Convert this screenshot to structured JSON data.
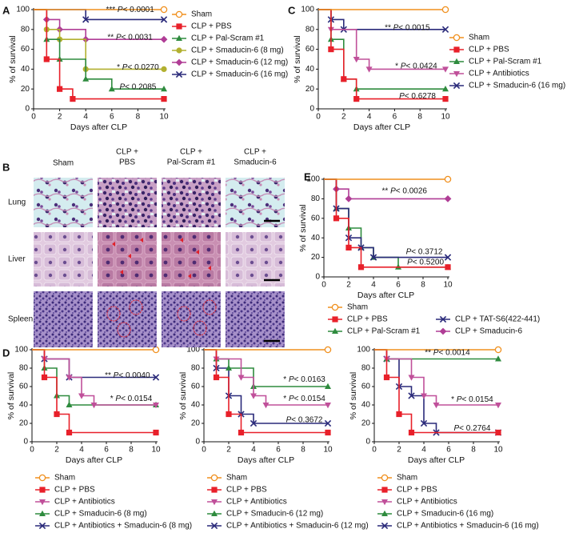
{
  "chart_data": [
    {
      "type": "step",
      "panel": "A",
      "ylabel": "% of survival",
      "xlabel": "Days after CLP",
      "x": [
        0,
        1,
        2,
        3,
        4,
        5,
        6,
        7,
        8,
        9,
        10
      ],
      "xlim": [
        0,
        10
      ],
      "ylim": [
        0,
        100
      ],
      "xticks": [
        0,
        2,
        4,
        6,
        8,
        10
      ],
      "yticks": [
        0,
        20,
        40,
        60,
        80,
        100
      ],
      "legend": "right",
      "series": [
        {
          "name": "Sham",
          "color": "#f0901e",
          "marker": "circle-open",
          "values": [
            100,
            100,
            100,
            100,
            100,
            100,
            100,
            100,
            100,
            100,
            100
          ]
        },
        {
          "name": "CLP + PBS",
          "color": "#e8202a",
          "marker": "square",
          "values": [
            100,
            50,
            20,
            10,
            10,
            10,
            10,
            10,
            10,
            10,
            10
          ]
        },
        {
          "name": "CLP + Pal-Scram #1",
          "color": "#2e8b3e",
          "marker": "triangle",
          "values": [
            100,
            70,
            50,
            50,
            30,
            30,
            20,
            20,
            20,
            20,
            20
          ]
        },
        {
          "name": "CLP + Smaducin-6 (8 mg)",
          "color": "#b2b030",
          "marker": "circle",
          "values": [
            100,
            80,
            70,
            70,
            40,
            40,
            40,
            40,
            40,
            40,
            40
          ]
        },
        {
          "name": "CLP + Smaducin-6 (12 mg)",
          "color": "#b03d96",
          "marker": "diamond",
          "values": [
            100,
            90,
            80,
            80,
            70,
            70,
            70,
            70,
            70,
            70,
            70
          ]
        },
        {
          "name": "CLP + Smaducin-6 (16 mg)",
          "color": "#2a2a7a",
          "marker": "x",
          "values": [
            100,
            100,
            100,
            100,
            90,
            90,
            90,
            90,
            90,
            90,
            90
          ]
        }
      ],
      "annotations": [
        "*** P< 0.0001",
        "** P< 0.0031",
        "* P< 0.0270",
        "P< 0.2085"
      ]
    },
    {
      "type": "step",
      "panel": "C",
      "ylabel": "% of survival",
      "xlabel": "Days after CLP",
      "x": [
        0,
        1,
        2,
        3,
        4,
        5,
        6,
        7,
        8,
        9,
        10
      ],
      "xlim": [
        0,
        10
      ],
      "ylim": [
        0,
        100
      ],
      "xticks": [
        0,
        2,
        4,
        6,
        8,
        10
      ],
      "yticks": [
        0,
        20,
        40,
        60,
        80,
        100
      ],
      "legend": "right",
      "series": [
        {
          "name": "Sham",
          "color": "#f0901e",
          "marker": "circle-open",
          "values": [
            100,
            100,
            100,
            100,
            100,
            100,
            100,
            100,
            100,
            100,
            100
          ]
        },
        {
          "name": "CLP + PBS",
          "color": "#e8202a",
          "marker": "square",
          "values": [
            100,
            60,
            30,
            10,
            10,
            10,
            10,
            10,
            10,
            10,
            10
          ]
        },
        {
          "name": "CLP + Pal-Scram #1",
          "color": "#2e8b3e",
          "marker": "triangle",
          "values": [
            100,
            70,
            30,
            20,
            20,
            20,
            20,
            20,
            20,
            20,
            20
          ]
        },
        {
          "name": "CLP + Antibiotics",
          "color": "#c0509a",
          "marker": "triangle-down",
          "values": [
            100,
            80,
            80,
            50,
            40,
            40,
            40,
            40,
            40,
            40,
            40
          ]
        },
        {
          "name": "CLP + Smaducin-6 (16 mg)",
          "color": "#2a2a7a",
          "marker": "x",
          "values": [
            100,
            90,
            80,
            80,
            80,
            80,
            80,
            80,
            80,
            80,
            80
          ]
        }
      ],
      "annotations": [
        "** P< 0.0015",
        "* P< 0.0424",
        "P< 0.6278"
      ]
    },
    {
      "type": "step",
      "panel": "E",
      "ylabel": "% of survival",
      "xlabel": "Days after CLP",
      "x": [
        0,
        1,
        2,
        3,
        4,
        5,
        6,
        7,
        8,
        9,
        10
      ],
      "xlim": [
        0,
        10
      ],
      "ylim": [
        0,
        100
      ],
      "xticks": [
        0,
        2,
        4,
        6,
        8,
        10
      ],
      "yticks": [
        0,
        20,
        40,
        60,
        80,
        100
      ],
      "legend": "below",
      "series": [
        {
          "name": "Sham",
          "color": "#f0901e",
          "marker": "circle-open",
          "values": [
            100,
            100,
            100,
            100,
            100,
            100,
            100,
            100,
            100,
            100,
            100
          ]
        },
        {
          "name": "CLP + PBS",
          "color": "#e8202a",
          "marker": "square",
          "values": [
            100,
            60,
            30,
            10,
            10,
            10,
            10,
            10,
            10,
            10,
            10
          ]
        },
        {
          "name": "CLP + TAT-S6(422-441)",
          "color": "#2a2a7a",
          "marker": "x",
          "values": [
            100,
            70,
            40,
            30,
            20,
            20,
            20,
            20,
            20,
            20,
            20
          ]
        },
        {
          "name": "CLP + Pal-Scram #1",
          "color": "#2e8b3e",
          "marker": "triangle",
          "values": [
            100,
            70,
            50,
            30,
            20,
            20,
            10,
            10,
            10,
            10,
            10
          ]
        },
        {
          "name": "CLP + Smaducin-6",
          "color": "#b03d96",
          "marker": "diamond",
          "values": [
            100,
            90,
            80,
            80,
            80,
            80,
            80,
            80,
            80,
            80,
            80
          ]
        }
      ],
      "annotations": [
        "** P< 0.0026",
        "P< 0.3712",
        "P< 0.5200"
      ]
    },
    {
      "type": "step",
      "panel": "D",
      "ylabel": "% of survival",
      "xlabel": "Days after CLP",
      "x": [
        0,
        1,
        2,
        3,
        4,
        5,
        6,
        7,
        8,
        9,
        10
      ],
      "xlim": [
        0,
        10
      ],
      "ylim": [
        0,
        100
      ],
      "xticks": [
        0,
        2,
        4,
        6,
        8,
        10
      ],
      "yticks": [
        0,
        20,
        40,
        60,
        80,
        100
      ],
      "legend": "below",
      "series": [
        {
          "name": "Sham",
          "color": "#f0901e",
          "marker": "circle-open",
          "values": [
            100,
            100,
            100,
            100,
            100,
            100,
            100,
            100,
            100,
            100,
            100
          ]
        },
        {
          "name": "CLP + PBS",
          "color": "#e8202a",
          "marker": "square",
          "values": [
            100,
            70,
            30,
            10,
            10,
            10,
            10,
            10,
            10,
            10,
            10
          ]
        },
        {
          "name": "CLP + Antibiotics",
          "color": "#c0509a",
          "marker": "triangle-down",
          "values": [
            100,
            90,
            90,
            70,
            50,
            40,
            40,
            40,
            40,
            40,
            40
          ]
        },
        {
          "name": "CLP + Smaducin-6 (8 mg)",
          "color": "#2e8b3e",
          "marker": "triangle",
          "values": [
            100,
            80,
            50,
            40,
            40,
            40,
            40,
            40,
            40,
            40,
            40
          ]
        },
        {
          "name": "CLP + Antibiotics + Smaducin-6 (8 mg)",
          "color": "#2a2a7a",
          "marker": "x",
          "values": [
            100,
            90,
            90,
            70,
            70,
            70,
            70,
            70,
            70,
            70,
            70
          ]
        }
      ],
      "annotations": [
        "** P< 0.0040",
        "* P< 0.0154"
      ]
    },
    {
      "type": "step",
      "ylabel": "% of survival",
      "xlabel": "Days after CLP",
      "x": [
        0,
        1,
        2,
        3,
        4,
        5,
        6,
        7,
        8,
        9,
        10
      ],
      "xlim": [
        0,
        10
      ],
      "ylim": [
        0,
        100
      ],
      "xticks": [
        0,
        2,
        4,
        6,
        8,
        10
      ],
      "yticks": [
        0,
        20,
        40,
        60,
        80,
        100
      ],
      "legend": "below",
      "series": [
        {
          "name": "Sham",
          "color": "#f0901e",
          "marker": "circle-open",
          "values": [
            100,
            100,
            100,
            100,
            100,
            100,
            100,
            100,
            100,
            100,
            100
          ]
        },
        {
          "name": "CLP + PBS",
          "color": "#e8202a",
          "marker": "square",
          "values": [
            100,
            70,
            30,
            10,
            10,
            10,
            10,
            10,
            10,
            10,
            10
          ]
        },
        {
          "name": "CLP + Antibiotics",
          "color": "#c0509a",
          "marker": "triangle-down",
          "values": [
            100,
            90,
            90,
            70,
            50,
            40,
            40,
            40,
            40,
            40,
            40
          ]
        },
        {
          "name": "CLP + Smaducin-6 (12 mg)",
          "color": "#2e8b3e",
          "marker": "triangle",
          "values": [
            100,
            90,
            80,
            80,
            60,
            60,
            60,
            60,
            60,
            60,
            60
          ]
        },
        {
          "name": "CLP + Antibiotics + Smaducin-6 (12 mg)",
          "color": "#2a2a7a",
          "marker": "x",
          "values": [
            100,
            80,
            50,
            30,
            20,
            20,
            20,
            20,
            20,
            20,
            20
          ]
        }
      ],
      "annotations": [
        "* P< 0.0163",
        "* P< 0.0154",
        "P< 0.3672"
      ]
    },
    {
      "type": "step",
      "ylabel": "% of survival",
      "xlabel": "Days after CLP",
      "x": [
        0,
        1,
        2,
        3,
        4,
        5,
        6,
        7,
        8,
        9,
        10
      ],
      "xlim": [
        0,
        10
      ],
      "ylim": [
        0,
        100
      ],
      "xticks": [
        0,
        2,
        4,
        6,
        8,
        10
      ],
      "yticks": [
        0,
        20,
        40,
        60,
        80,
        100
      ],
      "legend": "below",
      "series": [
        {
          "name": "Sham",
          "color": "#f0901e",
          "marker": "circle-open",
          "values": [
            100,
            100,
            100,
            100,
            100,
            100,
            100,
            100,
            100,
            100,
            100
          ]
        },
        {
          "name": "CLP + PBS",
          "color": "#e8202a",
          "marker": "square",
          "values": [
            100,
            70,
            30,
            10,
            10,
            10,
            10,
            10,
            10,
            10,
            10
          ]
        },
        {
          "name": "CLP + Antibiotics",
          "color": "#c0509a",
          "marker": "triangle-down",
          "values": [
            100,
            90,
            90,
            70,
            50,
            40,
            40,
            40,
            40,
            40,
            40
          ]
        },
        {
          "name": "CLP + Smaducin-6 (16 mg)",
          "color": "#2e8b3e",
          "marker": "triangle",
          "values": [
            100,
            90,
            90,
            90,
            90,
            90,
            90,
            90,
            90,
            90,
            90
          ]
        },
        {
          "name": "CLP + Antibiotics + Smaducin-6 (16 mg)",
          "color": "#2a2a7a",
          "marker": "x",
          "values": [
            100,
            90,
            60,
            50,
            20,
            10,
            10,
            10,
            10,
            10,
            10
          ]
        }
      ],
      "annotations": [
        "** P< 0.0014",
        "* P< 0.0154",
        "P< 0.2764"
      ]
    }
  ],
  "histology": {
    "panel": "B",
    "columns": [
      [
        "Sham"
      ],
      [
        "CLP +",
        "PBS"
      ],
      [
        "CLP +",
        "Pal-Scram #1"
      ],
      [
        "CLP +",
        "Smaducin-6"
      ]
    ],
    "rows": [
      "Lung",
      "Liver",
      "Spleen"
    ]
  }
}
